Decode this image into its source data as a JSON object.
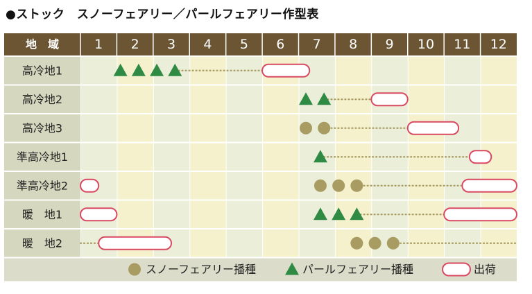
{
  "title": "●ストック　スノーフェアリー／パールフェアリー作型表",
  "chart_data": {
    "type": "table",
    "header_label": "地　域",
    "months": [
      "1",
      "2",
      "3",
      "4",
      "5",
      "6",
      "7",
      "8",
      "9",
      "10",
      "11",
      "12"
    ],
    "rows": [
      {
        "region": "高冷地1",
        "snow_sow": [],
        "pearl_sow": [
          2.1,
          2.6,
          3.1,
          3.6
        ],
        "dots": [
          [
            3.7,
            6.0
          ]
        ],
        "ship": [
          [
            6.0,
            7.3
          ]
        ]
      },
      {
        "region": "高冷地2",
        "snow_sow": [],
        "pearl_sow": [
          7.2,
          7.7
        ],
        "dots": [
          [
            7.8,
            9.0
          ]
        ],
        "ship": [
          [
            9.0,
            10.0
          ]
        ]
      },
      {
        "region": "高冷地3",
        "snow_sow": [
          7.2,
          7.7
        ],
        "pearl_sow": [],
        "dots": [
          [
            7.8,
            10.0
          ]
        ],
        "ship": [
          [
            10.0,
            11.4
          ]
        ]
      },
      {
        "region": "準高冷地1",
        "snow_sow": [],
        "pearl_sow": [
          7.6
        ],
        "dots": [
          [
            7.7,
            11.7
          ]
        ],
        "ship": [
          [
            11.7,
            12.3
          ]
        ]
      },
      {
        "region": "準高冷地2",
        "snow_sow": [
          7.6,
          8.1,
          8.6
        ],
        "pearl_sow": [],
        "dots": [
          [
            8.7,
            11.5
          ]
        ],
        "ship": [
          [
            1.0,
            1.5
          ],
          [
            11.5,
            13.0
          ]
        ]
      },
      {
        "region": "暖　地1",
        "snow_sow": [],
        "pearl_sow": [
          7.6,
          8.1,
          8.6
        ],
        "dots": [
          [
            8.7,
            11.0
          ]
        ],
        "ship": [
          [
            1.0,
            2.0
          ],
          [
            11.0,
            13.0
          ]
        ]
      },
      {
        "region": "暖　地2",
        "snow_sow": [
          8.6,
          9.1,
          9.6
        ],
        "pearl_sow": [],
        "dots": [
          [
            1.0,
            1.5
          ],
          [
            9.7,
            13.0
          ]
        ],
        "ship": [
          [
            1.5,
            3.5
          ]
        ]
      }
    ],
    "legend": [
      {
        "symbol": "circle",
        "label": "スノーフェアリー播種"
      },
      {
        "symbol": "triangle",
        "label": "パールフェアリー播種"
      },
      {
        "symbol": "pill",
        "label": "出荷"
      }
    ],
    "colors": {
      "header_bg": "#6b5533",
      "header_text": "#ffffff",
      "circle": "#a89c62",
      "triangle": "#2f8a44",
      "ship_stroke": "#d94a62",
      "ship_fill": "#ffffff",
      "dots": "#a89c62",
      "row_label_bg": "#d6d7bf",
      "cell_even": "#f4f1cc",
      "cell_odd": "#ebeed9",
      "legend_bg": "#dcdcca"
    }
  }
}
